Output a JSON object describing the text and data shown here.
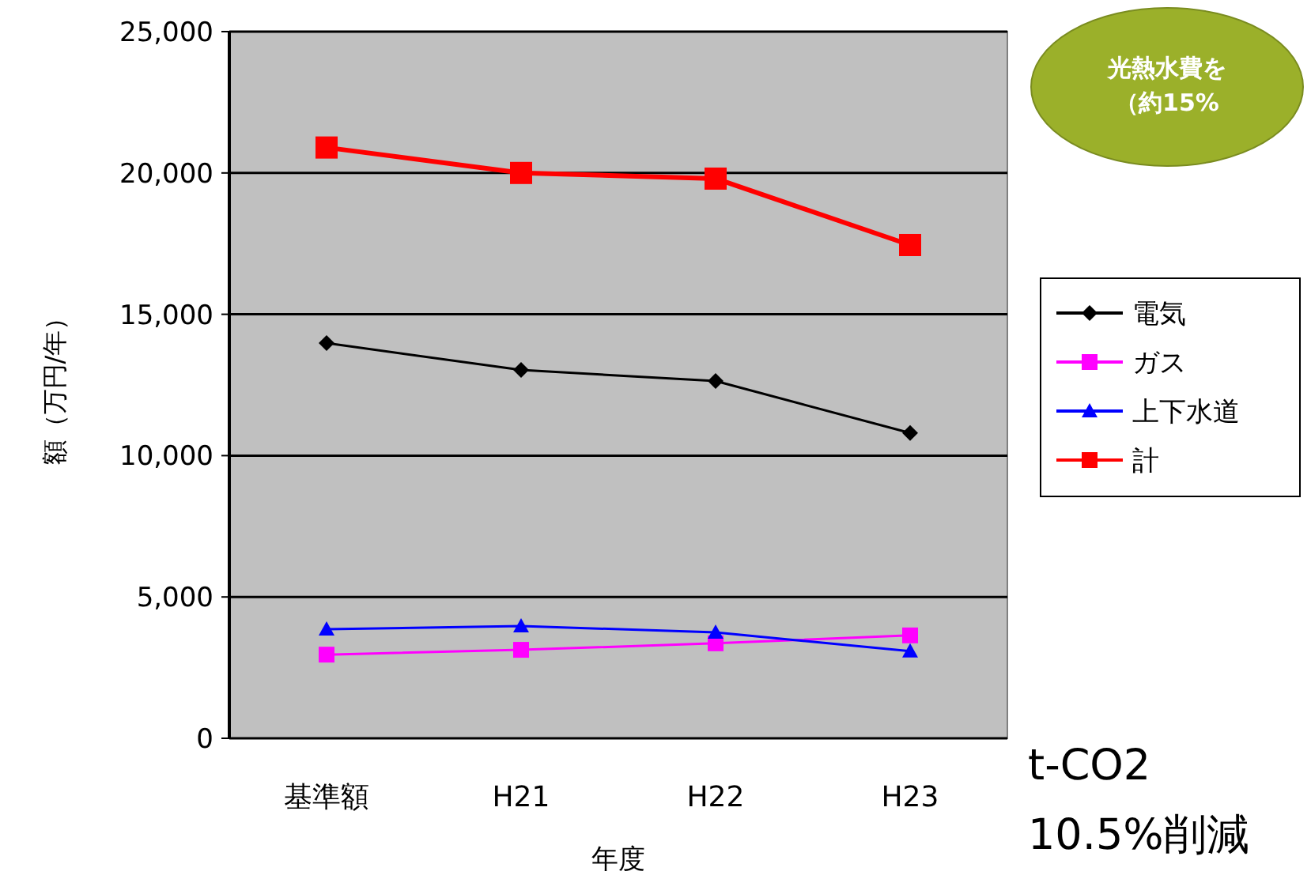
{
  "chart_data": {
    "type": "line",
    "xlabel": "年度",
    "ylabel": "額（万円/年）",
    "categories": [
      "基準額",
      "H21",
      "H22",
      "H23"
    ],
    "ylim": [
      0,
      25000
    ],
    "yticks": [
      {
        "value": 0,
        "label": "0"
      },
      {
        "value": 5000,
        "label": "5,000"
      },
      {
        "value": 10000,
        "label": "10,000"
      },
      {
        "value": 15000,
        "label": "15,000"
      },
      {
        "value": 20000,
        "label": "20,000"
      },
      {
        "value": 25000,
        "label": "25,000"
      }
    ],
    "grid": "y",
    "legend": "right",
    "series": [
      {
        "name": "電気",
        "color": "#000000",
        "marker": "diamond",
        "values": [
          13980,
          13030,
          12640,
          10800
        ]
      },
      {
        "name": "ガス",
        "color": "#ff00ff",
        "marker": "square",
        "values": [
          2960,
          3130,
          3360,
          3640
        ]
      },
      {
        "name": "上下水道",
        "color": "#0000ff",
        "marker": "triangle",
        "values": [
          3860,
          3970,
          3750,
          3080
        ]
      },
      {
        "name": "計",
        "color": "#ff0000",
        "marker": "square",
        "values": [
          20900,
          20000,
          19800,
          17450
        ]
      }
    ],
    "annotations": [
      "光熱水費を",
      "（約15%",
      "t-CO2",
      "10.5%削減"
    ]
  }
}
